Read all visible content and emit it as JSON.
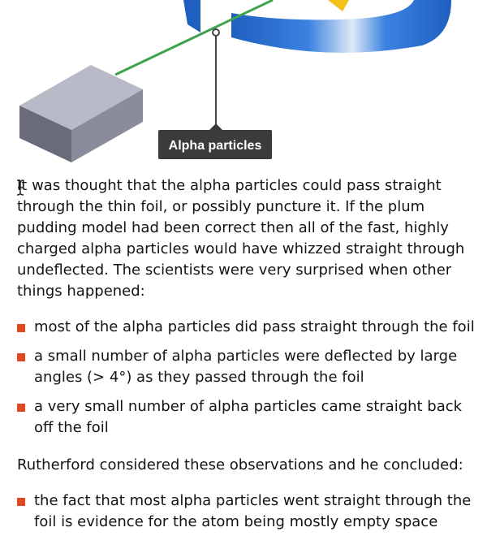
{
  "diagram": {
    "label": "Alpha particles",
    "colors": {
      "beam": "#3fa34d",
      "ring_blue": "#2f72d6",
      "box_top": "#b9bac7",
      "box_side": "#6a6b7a",
      "label_bg": "#3b3b3b",
      "gold": "#f2c21b"
    }
  },
  "content": {
    "intro": "It was thought that the alpha particles could pass straight through the thin foil, or possibly puncture it. If the plum pudding model had been correct then all of the fast, highly charged alpha particles would have whizzed straight through undeflected. The scientists were very surprised when other things happened:",
    "observations": [
      "most of the alpha particles did pass straight through the foil",
      "a small number of alpha particles were deflected by large angles (> 4°) as they passed through the foil",
      "a very small number of alpha particles came straight back off the foil"
    ],
    "conclusion_intro": "Rutherford considered these observations and he concluded:",
    "conclusions": [
      "the fact that most alpha particles went straight through the foil is evidence for the atom being mostly empty space"
    ]
  },
  "ui": {
    "accent_color": "#e2481f",
    "cursor_icon": "text-cursor-icon"
  }
}
